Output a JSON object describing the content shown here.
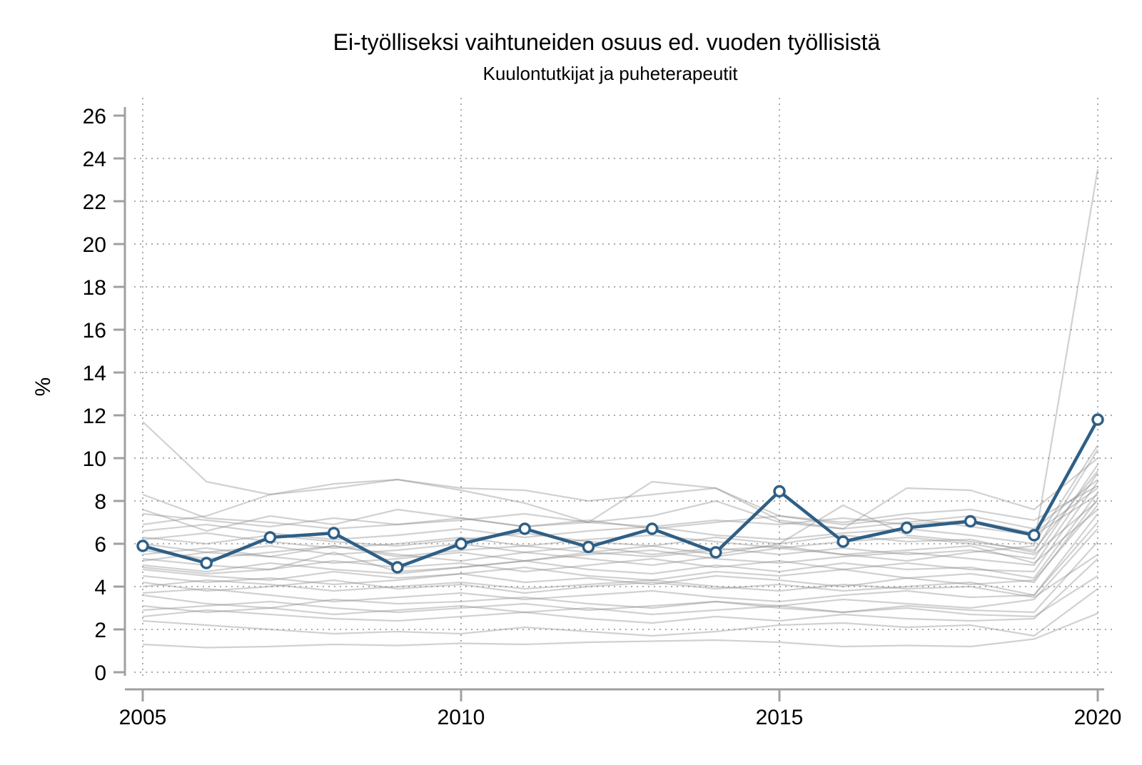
{
  "chart_data": {
    "type": "line",
    "title": "Ei-työlliseksi vaihtuneiden osuus ed. vuoden työllisistä",
    "subtitle": "Kuulontutkijat ja puheterapeutit",
    "ylabel": "%",
    "x": [
      2005,
      2006,
      2007,
      2008,
      2009,
      2010,
      2011,
      2012,
      2013,
      2014,
      2015,
      2016,
      2017,
      2018,
      2019,
      2020
    ],
    "xticks": [
      2005,
      2010,
      2015,
      2020
    ],
    "ylim": [
      0,
      26
    ],
    "ytick_step": 2,
    "grid": "dotted",
    "legend_position": "none",
    "main_series": {
      "name": "Kuulontutkijat ja puheterapeutit",
      "color": "#2E5F86",
      "marker": "open-circle",
      "values": [
        5.9,
        5.1,
        6.3,
        6.5,
        4.9,
        6.0,
        6.7,
        5.85,
        6.7,
        5.6,
        8.45,
        6.1,
        6.75,
        7.05,
        6.4,
        11.8
      ]
    },
    "background_series_color": "#c9c9c9",
    "background_series": [
      {
        "values": [
          11.7,
          8.9,
          8.3,
          8.6,
          9.0,
          8.5,
          7.9,
          7.0,
          8.9,
          8.6,
          7.3,
          7.0,
          7.4,
          7.6,
          7.1,
          8.7
        ]
      },
      {
        "values": [
          5.2,
          5.6,
          5.4,
          5.9,
          5.5,
          5.2,
          5.6,
          5.3,
          5.0,
          5.4,
          5.8,
          5.5,
          5.2,
          5.6,
          5.9,
          23.5
        ]
      },
      {
        "values": [
          1.3,
          1.15,
          1.2,
          1.3,
          1.25,
          1.35,
          1.3,
          1.4,
          1.45,
          1.5,
          1.4,
          1.2,
          1.25,
          1.2,
          1.55,
          2.75
        ]
      },
      {
        "values": [
          2.4,
          2.2,
          2.0,
          1.8,
          1.9,
          1.8,
          2.1,
          1.9,
          1.7,
          1.9,
          2.2,
          2.3,
          2.1,
          2.2,
          1.7,
          3.9
        ]
      },
      {
        "values": [
          2.6,
          2.9,
          2.7,
          2.5,
          2.4,
          2.6,
          2.8,
          2.5,
          2.3,
          2.6,
          2.4,
          2.7,
          2.5,
          2.4,
          2.5,
          5.3
        ]
      },
      {
        "values": [
          3.6,
          3.2,
          3.0,
          3.4,
          3.2,
          3.3,
          3.5,
          3.2,
          3.0,
          3.3,
          3.1,
          3.4,
          3.2,
          3.0,
          3.4,
          6.7
        ]
      },
      {
        "values": [
          3.7,
          3.9,
          3.6,
          3.3,
          3.5,
          3.7,
          3.4,
          3.6,
          3.8,
          3.5,
          3.3,
          3.6,
          3.8,
          3.5,
          3.6,
          7.0
        ]
      },
      {
        "values": [
          4.2,
          3.8,
          4.0,
          4.3,
          3.9,
          4.1,
          3.7,
          4.0,
          4.2,
          3.9,
          4.1,
          3.8,
          4.0,
          4.2,
          3.6,
          7.4
        ]
      },
      {
        "values": [
          4.5,
          4.2,
          4.4,
          4.1,
          4.3,
          4.6,
          4.2,
          4.4,
          4.1,
          4.5,
          4.3,
          4.0,
          4.4,
          4.1,
          4.3,
          7.8
        ]
      },
      {
        "values": [
          4.8,
          4.5,
          4.3,
          4.7,
          4.4,
          4.6,
          4.9,
          4.5,
          4.3,
          4.7,
          4.5,
          4.8,
          4.4,
          4.6,
          4.2,
          8.1
        ]
      },
      {
        "values": [
          5.0,
          4.7,
          5.1,
          4.8,
          4.6,
          4.9,
          5.2,
          4.8,
          4.6,
          5.0,
          4.7,
          5.1,
          4.8,
          4.9,
          4.4,
          8.4
        ]
      },
      {
        "values": [
          5.3,
          5.0,
          4.8,
          5.2,
          4.9,
          5.1,
          4.7,
          5.0,
          5.3,
          4.9,
          5.2,
          4.8,
          5.1,
          4.8,
          4.7,
          8.9
        ]
      },
      {
        "values": [
          5.5,
          5.8,
          5.4,
          5.1,
          5.3,
          5.6,
          5.2,
          5.5,
          5.7,
          5.3,
          5.1,
          5.4,
          5.6,
          5.3,
          5.0,
          9.3
        ]
      },
      {
        "values": [
          6.0,
          5.6,
          5.9,
          5.5,
          5.7,
          6.0,
          5.6,
          5.9,
          5.5,
          5.8,
          5.5,
          5.8,
          5.5,
          5.7,
          5.3,
          9.7
        ]
      },
      {
        "values": [
          6.3,
          6.0,
          6.4,
          6.1,
          5.9,
          6.2,
          6.5,
          6.1,
          5.9,
          6.3,
          6.0,
          6.4,
          6.1,
          6.2,
          5.6,
          10.4
        ]
      },
      {
        "values": [
          6.6,
          6.9,
          6.5,
          6.2,
          6.4,
          6.7,
          6.3,
          6.6,
          6.8,
          6.4,
          6.2,
          6.5,
          6.7,
          6.4,
          6.0,
          10.6
        ]
      },
      {
        "values": [
          7.6,
          6.6,
          7.3,
          6.9,
          7.6,
          7.2,
          6.8,
          7.1,
          6.7,
          7.0,
          7.3,
          6.9,
          7.2,
          6.8,
          6.4,
          8.3
        ]
      },
      {
        "values": [
          7.4,
          7.1,
          6.8,
          7.2,
          6.9,
          7.1,
          7.4,
          7.0,
          6.8,
          7.1,
          6.9,
          7.2,
          6.9,
          7.1,
          6.5,
          8.6
        ]
      },
      {
        "values": [
          8.3,
          7.2,
          7.0,
          6.7,
          6.9,
          7.2,
          6.8,
          7.0,
          7.3,
          8.0,
          7.0,
          6.7,
          7.0,
          7.3,
          6.7,
          9.0
        ]
      },
      {
        "values": [
          4.9,
          4.6,
          4.8,
          5.6,
          4.7,
          4.9,
          5.2,
          5.6,
          5.9,
          5.5,
          6.0,
          7.8,
          6.4,
          6.1,
          5.7,
          9.4
        ]
      },
      {
        "values": [
          6.9,
          7.3,
          8.3,
          8.8,
          9.0,
          8.6,
          8.5,
          8.0,
          8.3,
          8.6,
          7.1,
          6.7,
          8.6,
          8.5,
          7.6,
          10.0
        ]
      },
      {
        "values": [
          3.1,
          2.8,
          3.0,
          2.7,
          2.9,
          3.1,
          2.8,
          3.0,
          2.7,
          2.9,
          3.1,
          2.8,
          3.0,
          2.7,
          2.6,
          4.5
        ]
      },
      {
        "values": [
          4.0,
          4.3,
          4.1,
          3.8,
          4.0,
          4.2,
          3.9,
          4.1,
          4.3,
          4.0,
          3.8,
          4.1,
          3.9,
          4.0,
          3.5,
          5.5
        ]
      },
      {
        "values": [
          5.7,
          5.3,
          5.6,
          5.9,
          5.4,
          5.7,
          5.9,
          5.6,
          5.4,
          5.7,
          5.9,
          5.5,
          5.7,
          5.9,
          5.1,
          7.6
        ]
      },
      {
        "values": [
          6.2,
          6.5,
          6.1,
          5.8,
          6.0,
          6.3,
          5.9,
          6.2,
          6.4,
          6.1,
          5.8,
          6.1,
          6.3,
          6.0,
          5.5,
          8.0
        ]
      },
      {
        "values": [
          2.9,
          3.1,
          3.3,
          3.0,
          2.8,
          3.0,
          3.2,
          2.9,
          3.1,
          3.3,
          3.0,
          2.8,
          3.1,
          2.9,
          2.8,
          6.1
        ]
      }
    ]
  },
  "style": {
    "axis_color": "#a0a0a0",
    "grid_color": "#ababab",
    "marker_fill": "#ffffff",
    "text_color": "#000000"
  }
}
